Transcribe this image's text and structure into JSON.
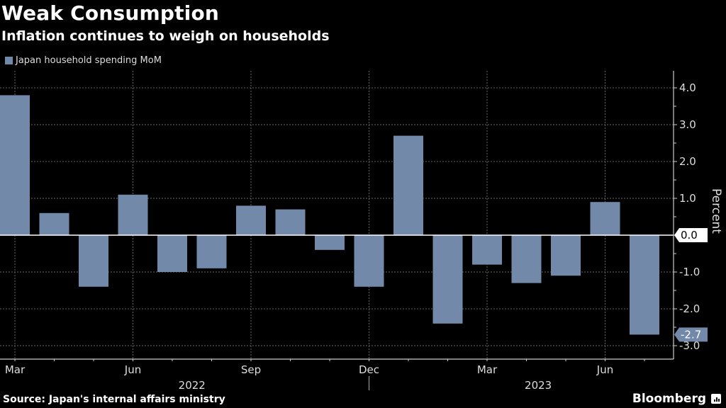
{
  "chart_data": {
    "type": "bar",
    "title": "Weak Consumption",
    "subtitle": "Inflation continues to weigh on households",
    "xlabel": "",
    "ylabel": "Percent",
    "ylim": [
      -3.0,
      4.0
    ],
    "yticks": [
      4.0,
      3.0,
      2.0,
      1.0,
      0.0,
      -1.0,
      -2.0,
      -3.0
    ],
    "ytick_labels": [
      "4.0",
      "3.0",
      "2.0",
      "1.0",
      "0.0",
      "-1.0",
      "-2.0",
      "-3.0"
    ],
    "grid": true,
    "legend_position": "top-left",
    "categories": [
      "Mar 2022",
      "Apr 2022",
      "May 2022",
      "Jun 2022",
      "Jul 2022",
      "Aug 2022",
      "Sep 2022",
      "Oct 2022",
      "Nov 2022",
      "Dec 2022",
      "Jan 2023",
      "Feb 2023",
      "Mar 2023",
      "Apr 2023",
      "May 2023",
      "Jun 2023",
      "Jul 2023"
    ],
    "xtick_labels": [
      {
        "index": 0,
        "label": "Mar"
      },
      {
        "index": 3,
        "label": "Jun"
      },
      {
        "index": 6,
        "label": "Sep"
      },
      {
        "index": 9,
        "label": "Dec"
      },
      {
        "index": 12,
        "label": "Mar"
      },
      {
        "index": 15,
        "label": "Jun"
      }
    ],
    "year_labels": [
      {
        "label": "2022",
        "center_index": 4.5
      },
      {
        "label": "2023",
        "center_index": 13.3
      }
    ],
    "year_divider_index": 9,
    "series": [
      {
        "name": "Japan household spending MoM",
        "color": "#7389aa",
        "values": [
          3.8,
          0.6,
          -1.4,
          1.1,
          -1.0,
          -0.9,
          0.8,
          0.7,
          -0.4,
          -1.4,
          2.7,
          -2.4,
          -0.8,
          -1.3,
          -1.1,
          0.9,
          -2.7
        ]
      }
    ],
    "annotations": [
      {
        "type": "axis-callout",
        "value": 0.0,
        "label": "0.0",
        "style": "white"
      },
      {
        "type": "axis-callout",
        "value": -2.7,
        "label": "-2.7",
        "style": "series"
      }
    ]
  },
  "footer": {
    "source": "Source: Japan's internal affairs ministry",
    "brand": "Bloomberg"
  }
}
